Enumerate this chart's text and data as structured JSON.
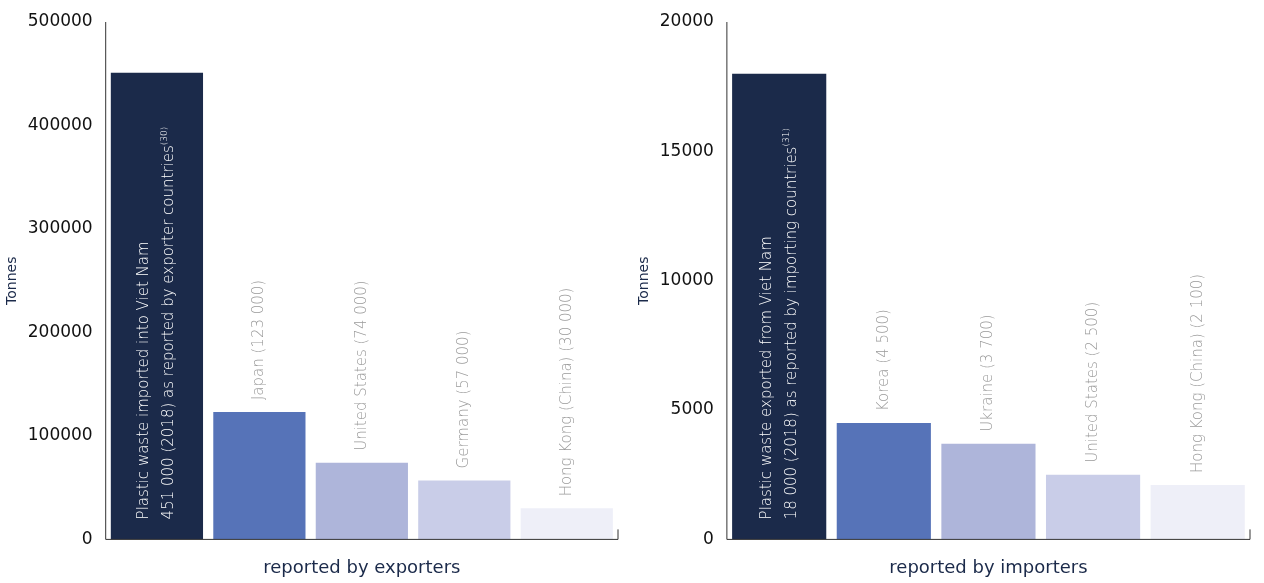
{
  "chart_data": [
    {
      "type": "bar",
      "xlabel": "reported by exporters",
      "ylabel": "Tonnes",
      "categories": [
        null,
        null,
        null,
        null,
        null
      ],
      "values": [
        451000,
        123000,
        74000,
        57000,
        30000
      ],
      "colors": [
        "#1b2a4a",
        "#5673b8",
        "#aeb5da",
        "#c9cde8",
        "#eeeff8"
      ],
      "value_labels": [
        "Plastic waste imported into Viet Nam\n451 000 (2018) as reported by exporter countries$^{(30)}$",
        "Japan (123 000)",
        "United States (74 000)",
        "Germany (57 000)",
        "Hong Kong (China) (30 000)"
      ],
      "ylim": [
        0,
        500000
      ],
      "yticks": [
        0,
        100000,
        200000,
        300000,
        400000,
        500000
      ],
      "grid": false,
      "legend": false
    },
    {
      "type": "bar",
      "xlabel": "reported by importers",
      "ylabel": "Tonnes",
      "categories": [
        null,
        null,
        null,
        null,
        null
      ],
      "values": [
        18000,
        4500,
        3700,
        2500,
        2100
      ],
      "colors": [
        "#1b2a4a",
        "#5673b8",
        "#aeb5da",
        "#c9cde8",
        "#eeeff8"
      ],
      "value_labels": [
        "Plastic waste exported from Viet Nam\n18 000 (2018) as reported by importing countries$^{(31)}$",
        "Korea (4 500)",
        "Ukraine (3 700)",
        "United States (2 500)",
        "Hong Kong (China) (2 100)"
      ],
      "ylim": [
        0,
        20000
      ],
      "yticks": [
        0,
        5000,
        10000,
        15000,
        20000
      ],
      "grid": false,
      "legend": false
    }
  ]
}
